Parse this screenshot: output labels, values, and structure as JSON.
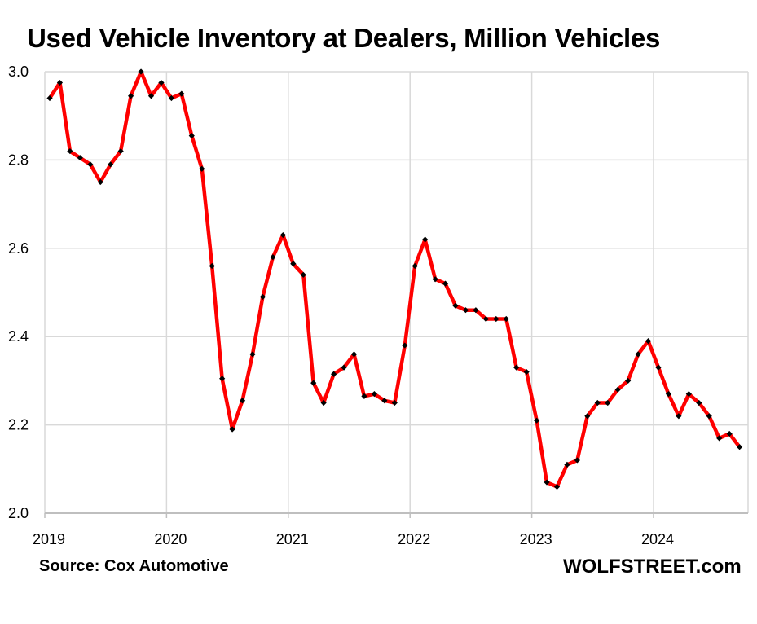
{
  "chart_data": {
    "type": "line",
    "title": "Used Vehicle Inventory at Dealers, Million Vehicles",
    "xlabel": "",
    "ylabel": "",
    "ylim": [
      2.0,
      3.0
    ],
    "yticks": [
      "2.0",
      "2.2",
      "2.4",
      "2.6",
      "2.8",
      "3.0"
    ],
    "xticks": [
      "2019",
      "2020",
      "2021",
      "2022",
      "2023",
      "2024"
    ],
    "grid": true,
    "series": [
      {
        "name": "Used Vehicle Inventory",
        "color": "#ff0000",
        "marker_color": "#000000",
        "start": "2019-01",
        "values": [
          2.94,
          2.975,
          2.82,
          2.805,
          2.79,
          2.75,
          2.79,
          2.82,
          2.945,
          3.0,
          2.945,
          2.975,
          2.94,
          2.95,
          2.855,
          2.78,
          2.56,
          2.305,
          2.19,
          2.255,
          2.36,
          2.49,
          2.58,
          2.63,
          2.565,
          2.54,
          2.295,
          2.25,
          2.315,
          2.33,
          2.36,
          2.265,
          2.27,
          2.255,
          2.25,
          2.38,
          2.56,
          2.62,
          2.53,
          2.52,
          2.47,
          2.46,
          2.46,
          2.44,
          2.44,
          2.44,
          2.33,
          2.32,
          2.21,
          2.07,
          2.06,
          2.11,
          2.12,
          2.22,
          2.25,
          2.25,
          2.28,
          2.3,
          2.36,
          2.39,
          2.33,
          2.27,
          2.22,
          2.27,
          2.25,
          2.22,
          2.17,
          2.18,
          2.15
        ]
      }
    ]
  },
  "footer": {
    "source": "Source: Cox Automotive",
    "brand": "WOLFSTREET.com"
  }
}
